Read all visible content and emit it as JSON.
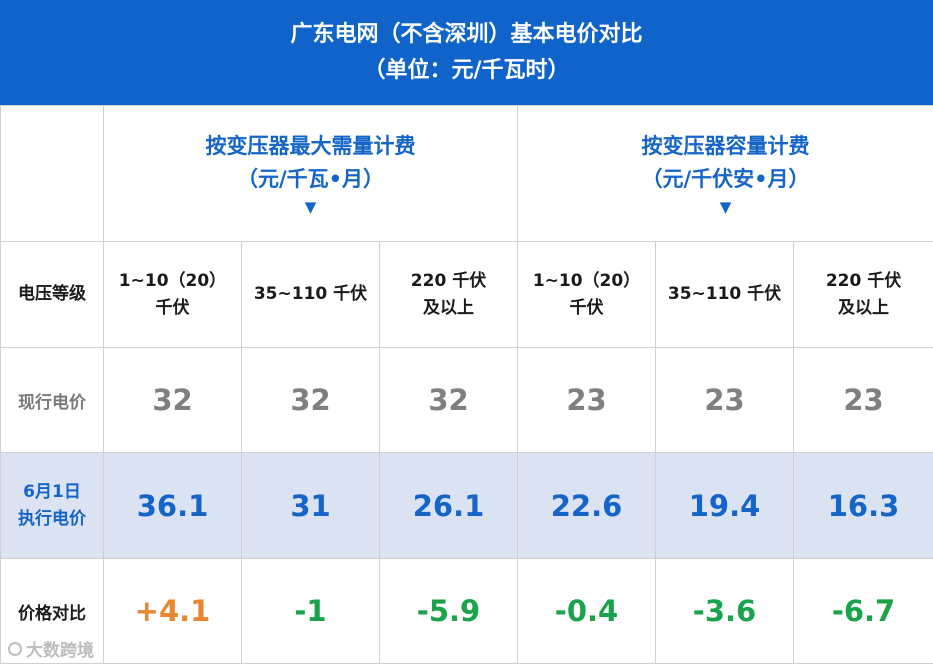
{
  "banner": {
    "title": "广东电网（不含深圳）基本电价对比",
    "unit": "（单位：元/千瓦时）"
  },
  "groups": [
    {
      "title": "按变压器最大需量计费",
      "unit": "（元/千瓦•月）",
      "arrow": "▼"
    },
    {
      "title": "按变压器容量计费",
      "unit": "（元/千伏安•月）",
      "arrow": "▼"
    }
  ],
  "header_label": "电压等级",
  "voltage_levels": [
    {
      "line1": "1~10（20）",
      "line2": "千伏"
    },
    {
      "line1": "35~110 千伏",
      "line2": ""
    },
    {
      "line1": "220 千伏",
      "line2": "及以上"
    },
    {
      "line1": "1~10（20）",
      "line2": "千伏"
    },
    {
      "line1": "35~110 千伏",
      "line2": ""
    },
    {
      "line1": "220 千伏",
      "line2": "及以上"
    }
  ],
  "rows": {
    "current": {
      "label": "现行电价",
      "values": [
        "32",
        "32",
        "32",
        "23",
        "23",
        "23"
      ]
    },
    "new": {
      "label_line1": "6月1日",
      "label_line2": "执行电价",
      "values": [
        "36.1",
        "31",
        "26.1",
        "22.6",
        "19.4",
        "16.3"
      ]
    },
    "diff": {
      "label": "价格对比",
      "values": [
        "+4.1",
        "-1",
        "-5.9",
        "-0.4",
        "-3.6",
        "-6.7"
      ]
    }
  },
  "colors": {
    "banner_bg": "#0f63c9",
    "accent_blue": "#1565c8",
    "increase_orange": "#e8872f",
    "decrease_green": "#1aa34a",
    "new_row_bg": "#dbe3f3"
  },
  "watermark": {
    "text": "大数跨境",
    "icon": "logo-circle-icon"
  }
}
